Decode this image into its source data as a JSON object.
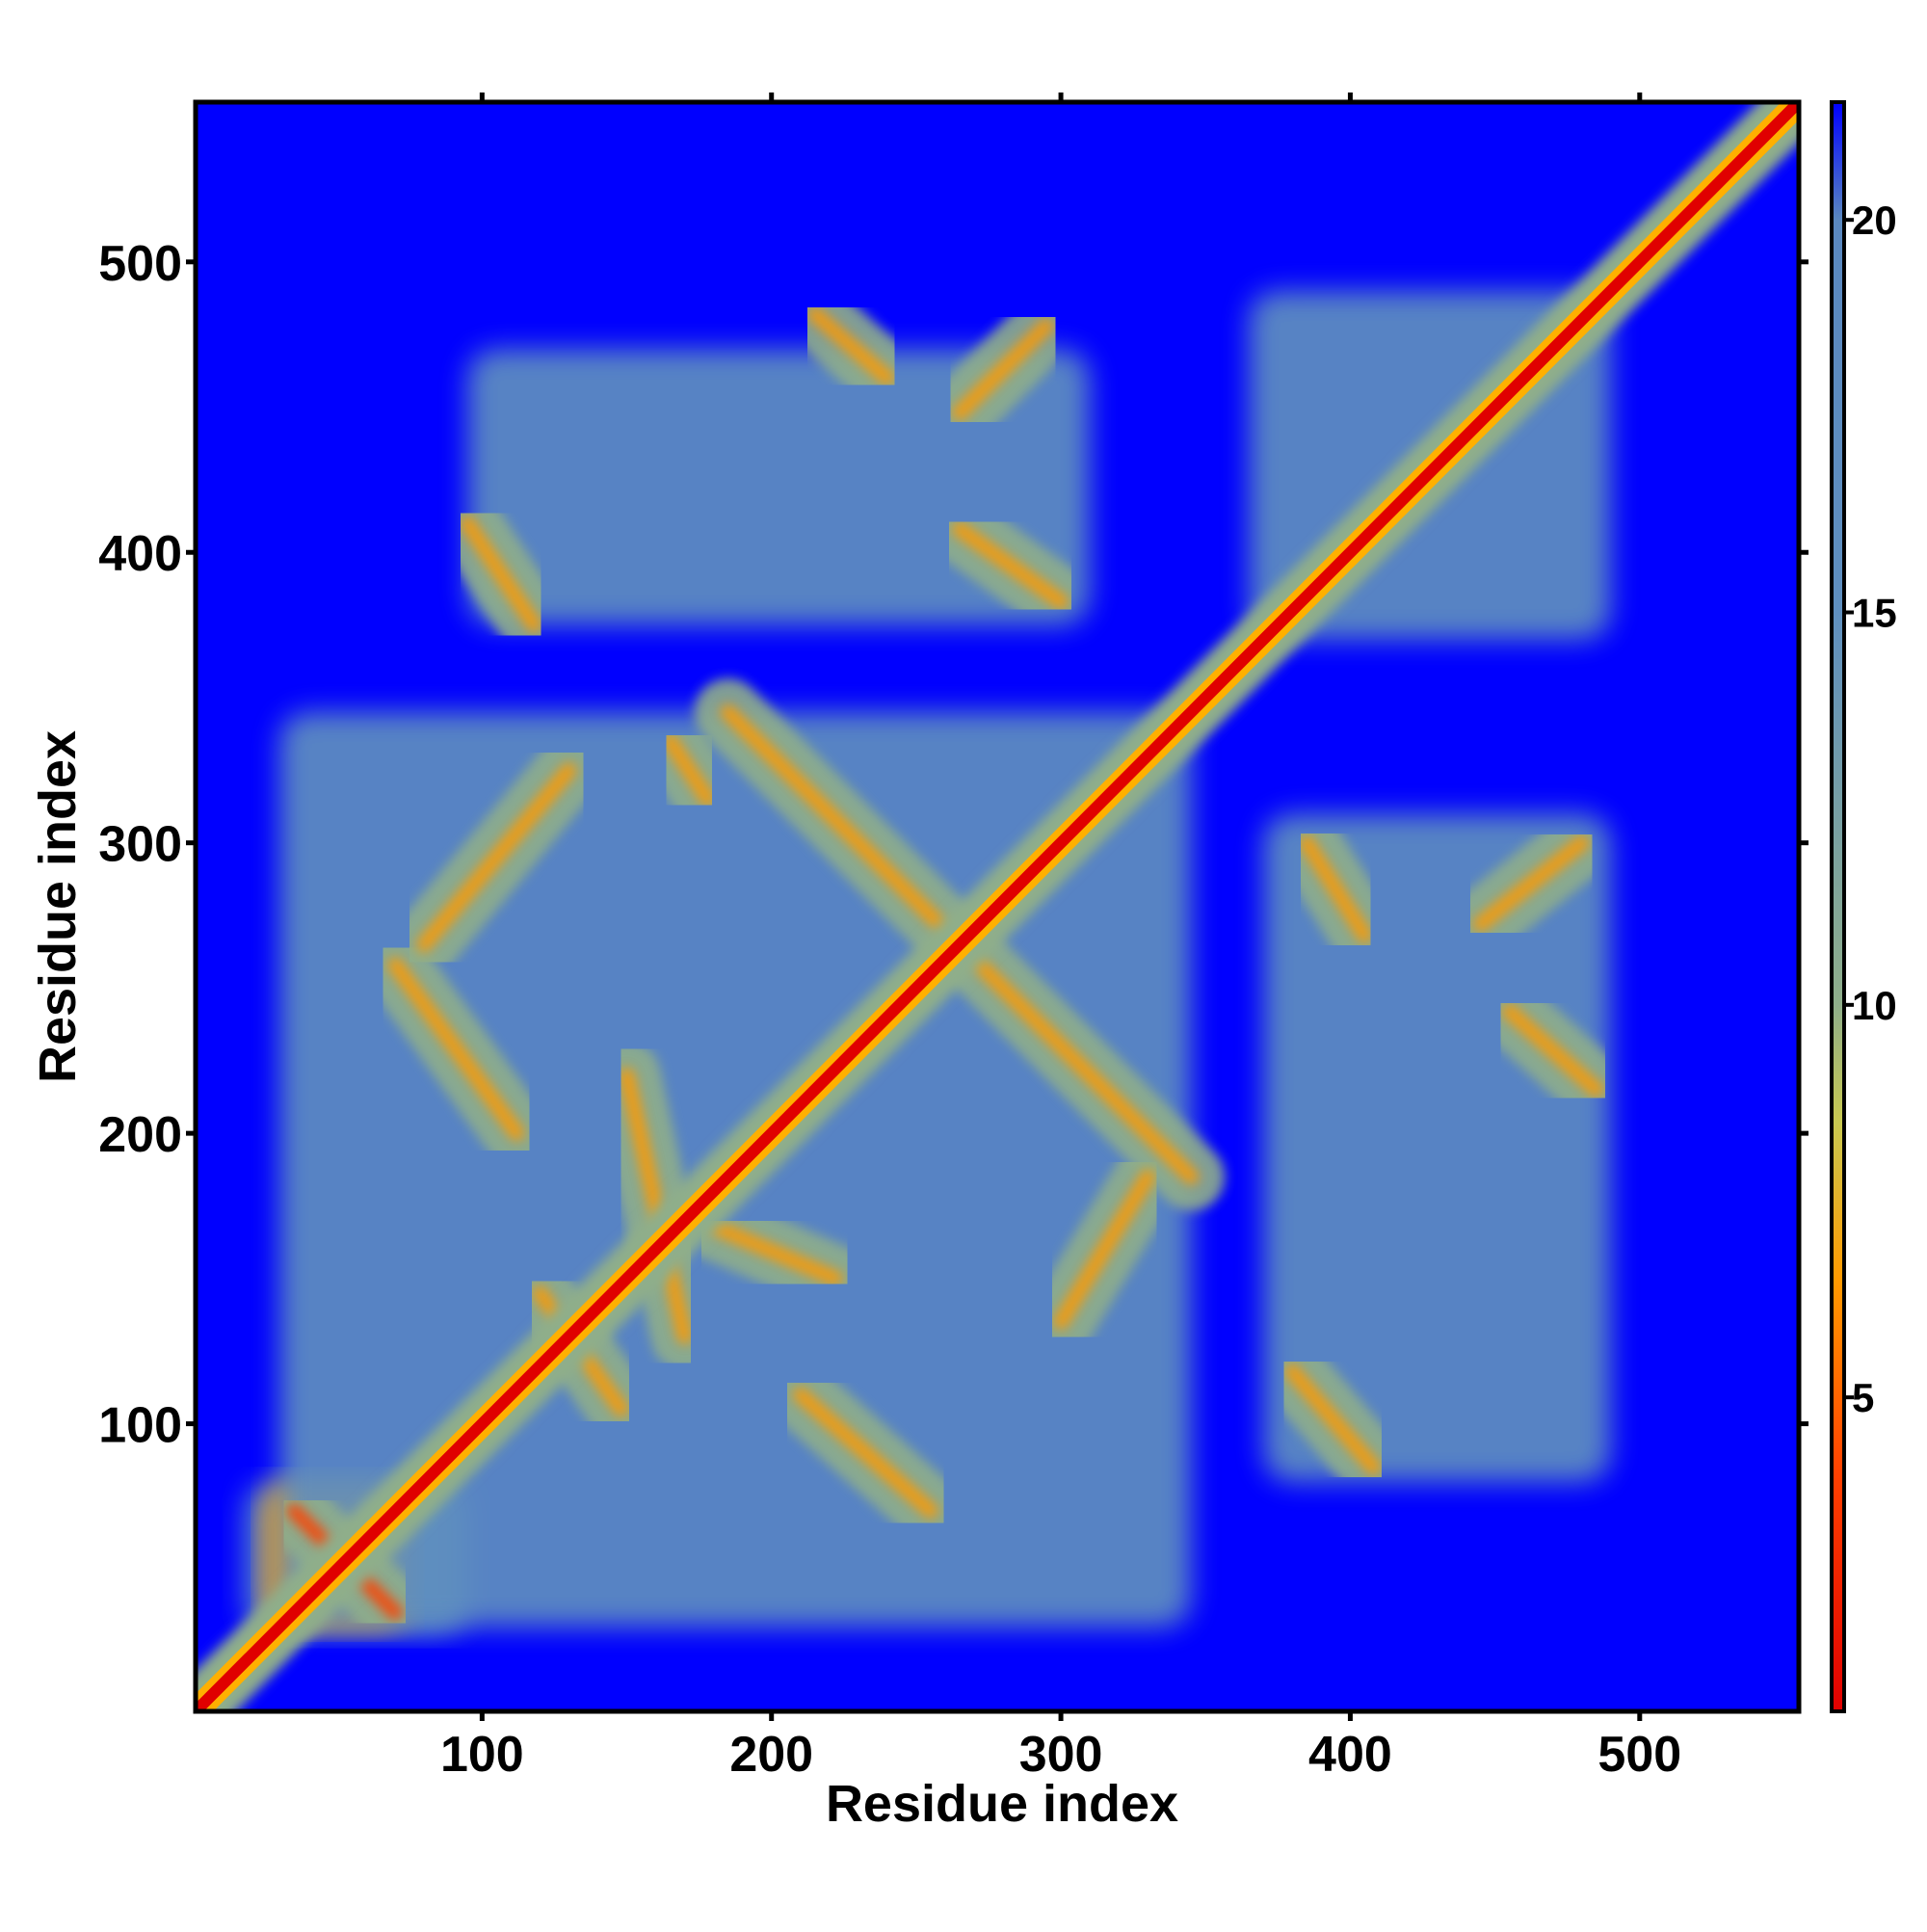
{
  "chart_data": {
    "type": "heatmap",
    "title": "",
    "xlabel": "Residue index",
    "ylabel": "Residue index",
    "xlim": [
      1,
      555
    ],
    "ylim": [
      1,
      555
    ],
    "x_ticks": [
      100,
      200,
      300,
      400,
      500
    ],
    "x_tick_labels": [
      "100",
      "200",
      "300",
      "400",
      "500"
    ],
    "y_ticks": [
      100,
      200,
      300,
      400,
      500
    ],
    "y_tick_labels": [
      "100",
      "200",
      "300",
      "400",
      "500"
    ],
    "colorbar": {
      "range": [
        1,
        21.5
      ],
      "ticks": [
        5,
        10,
        15,
        20
      ],
      "tick_labels": [
        "5",
        "10",
        "15",
        "20"
      ],
      "stops": [
        {
          "value": 1,
          "color": "#e00000"
        },
        {
          "value": 4,
          "color": "#ff4000"
        },
        {
          "value": 6.5,
          "color": "#ff9a00"
        },
        {
          "value": 8.5,
          "color": "#c8c850"
        },
        {
          "value": 10,
          "color": "#8fae8a"
        },
        {
          "value": 15,
          "color": "#5f8fbf"
        },
        {
          "value": 20,
          "color": "#5a88bf"
        },
        {
          "value": 21.5,
          "color": "#0000ff"
        }
      ]
    },
    "background_value": 21.5,
    "background_color": "#0000ff",
    "grid": false,
    "diagonal": {
      "value": 1,
      "halo_value": 12
    },
    "contact_patches": [
      {
        "id": "ctl",
        "x": [
          18,
          95
        ],
        "y": [
          28,
          80
        ],
        "value": 15
      },
      {
        "id": "nterm-cross-a",
        "x": [
          25,
          75
        ],
        "y": [
          30,
          80
        ],
        "value": 6
      },
      {
        "id": "big-domain",
        "x": [
          30,
          345
        ],
        "y": [
          30,
          345
        ],
        "value": 15
      },
      {
        "id": "block-300-450",
        "x": [
          95,
          310
        ],
        "y": [
          375,
          470
        ],
        "value": 15
      },
      {
        "id": "block-400-300",
        "x": [
          370,
          490
        ],
        "y": [
          80,
          310
        ],
        "value": 15
      },
      {
        "id": "diag-block-400",
        "x": [
          365,
          490
        ],
        "y": [
          370,
          490
        ],
        "value": 13
      }
    ],
    "contact_streaks": [
      {
        "id": "s1",
        "from": [
          70,
          258
        ],
        "to": [
          112,
          200
        ],
        "value": 7
      },
      {
        "id": "s2",
        "from": [
          80,
          265
        ],
        "to": [
          130,
          325
        ],
        "value": 7
      },
      {
        "id": "s3",
        "from": [
          120,
          145
        ],
        "to": [
          148,
          105
        ],
        "value": 7
      },
      {
        "id": "s4",
        "from": [
          150,
          220
        ],
        "to": [
          170,
          130
        ],
        "value": 7
      },
      {
        "id": "s5",
        "from": [
          180,
          168
        ],
        "to": [
          222,
          150
        ],
        "value": 7
      },
      {
        "id": "s6",
        "from": [
          185,
          345
        ],
        "to": [
          345,
          185
        ],
        "value": 6
      },
      {
        "id": "s7",
        "from": [
          165,
          335
        ],
        "to": [
          178,
          315
        ],
        "value": 7
      },
      {
        "id": "s8",
        "from": [
          210,
          110
        ],
        "to": [
          255,
          70
        ],
        "value": 7
      },
      {
        "id": "s9",
        "from": [
          330,
          185
        ],
        "to": [
          300,
          135
        ],
        "value": 7
      },
      {
        "id": "s10",
        "from": [
          95,
          410
        ],
        "to": [
          118,
          375
        ],
        "value": 7
      },
      {
        "id": "s11",
        "from": [
          215,
          482
        ],
        "to": [
          240,
          460
        ],
        "value": 7
      },
      {
        "id": "s12",
        "from": [
          265,
          448
        ],
        "to": [
          295,
          478
        ],
        "value": 7
      },
      {
        "id": "s13",
        "from": [
          265,
          408
        ],
        "to": [
          300,
          383
        ],
        "value": 7
      },
      {
        "id": "s14",
        "from": [
          385,
          300
        ],
        "to": [
          405,
          268
        ],
        "value": 7
      },
      {
        "id": "s15",
        "from": [
          445,
          272
        ],
        "to": [
          480,
          300
        ],
        "value": 7
      },
      {
        "id": "s16",
        "from": [
          455,
          242
        ],
        "to": [
          485,
          215
        ],
        "value": 7
      },
      {
        "id": "s17",
        "from": [
          380,
          118
        ],
        "to": [
          408,
          85
        ],
        "value": 7
      },
      {
        "id": "s18",
        "from": [
          35,
          70
        ],
        "to": [
          70,
          35
        ],
        "value": 5
      }
    ]
  }
}
